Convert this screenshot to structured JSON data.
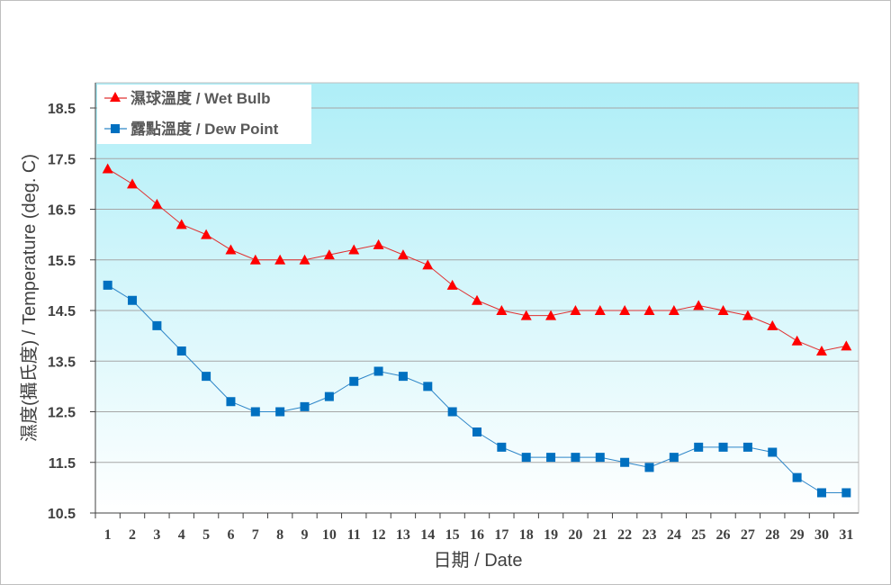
{
  "chart_data": {
    "type": "line",
    "xlabel": "日期 / Date",
    "ylabel": "濕度(攝氏度) / Temperature (deg. C)",
    "x": [
      1,
      2,
      3,
      4,
      5,
      6,
      7,
      8,
      9,
      10,
      11,
      12,
      13,
      14,
      15,
      16,
      17,
      18,
      19,
      20,
      21,
      22,
      23,
      24,
      25,
      26,
      27,
      28,
      29,
      30,
      31
    ],
    "ylim": [
      10.5,
      18.5
    ],
    "yticks": [
      10.5,
      11.5,
      12.5,
      13.5,
      14.5,
      15.5,
      16.5,
      17.5,
      18.5
    ],
    "grid": true,
    "legend_position": "top-left",
    "background": {
      "top": "#aeeef7",
      "bottom": "#ffffff"
    },
    "series": [
      {
        "name": "濕球溫度 / Wet Bulb",
        "color": "#ff0000",
        "line_color": "#e03030",
        "marker": "triangle",
        "values": [
          17.3,
          17.0,
          16.6,
          16.2,
          16.0,
          15.7,
          15.5,
          15.5,
          15.5,
          15.6,
          15.7,
          15.8,
          15.6,
          15.4,
          15.0,
          14.7,
          14.5,
          14.4,
          14.4,
          14.5,
          14.5,
          14.5,
          14.5,
          14.5,
          14.6,
          14.5,
          14.4,
          14.2,
          13.9,
          13.7,
          13.8
        ]
      },
      {
        "name": "露點溫度 / Dew Point",
        "color": "#0070c0",
        "line_color": "#2e86c8",
        "marker": "square",
        "values": [
          15.0,
          14.7,
          14.2,
          13.7,
          13.2,
          12.7,
          12.5,
          12.5,
          12.6,
          12.8,
          13.1,
          13.3,
          13.2,
          13.0,
          12.5,
          12.1,
          11.8,
          11.6,
          11.6,
          11.6,
          11.6,
          11.5,
          11.4,
          11.6,
          11.8,
          11.8,
          11.8,
          11.7,
          11.2,
          10.9,
          10.9
        ]
      }
    ]
  }
}
